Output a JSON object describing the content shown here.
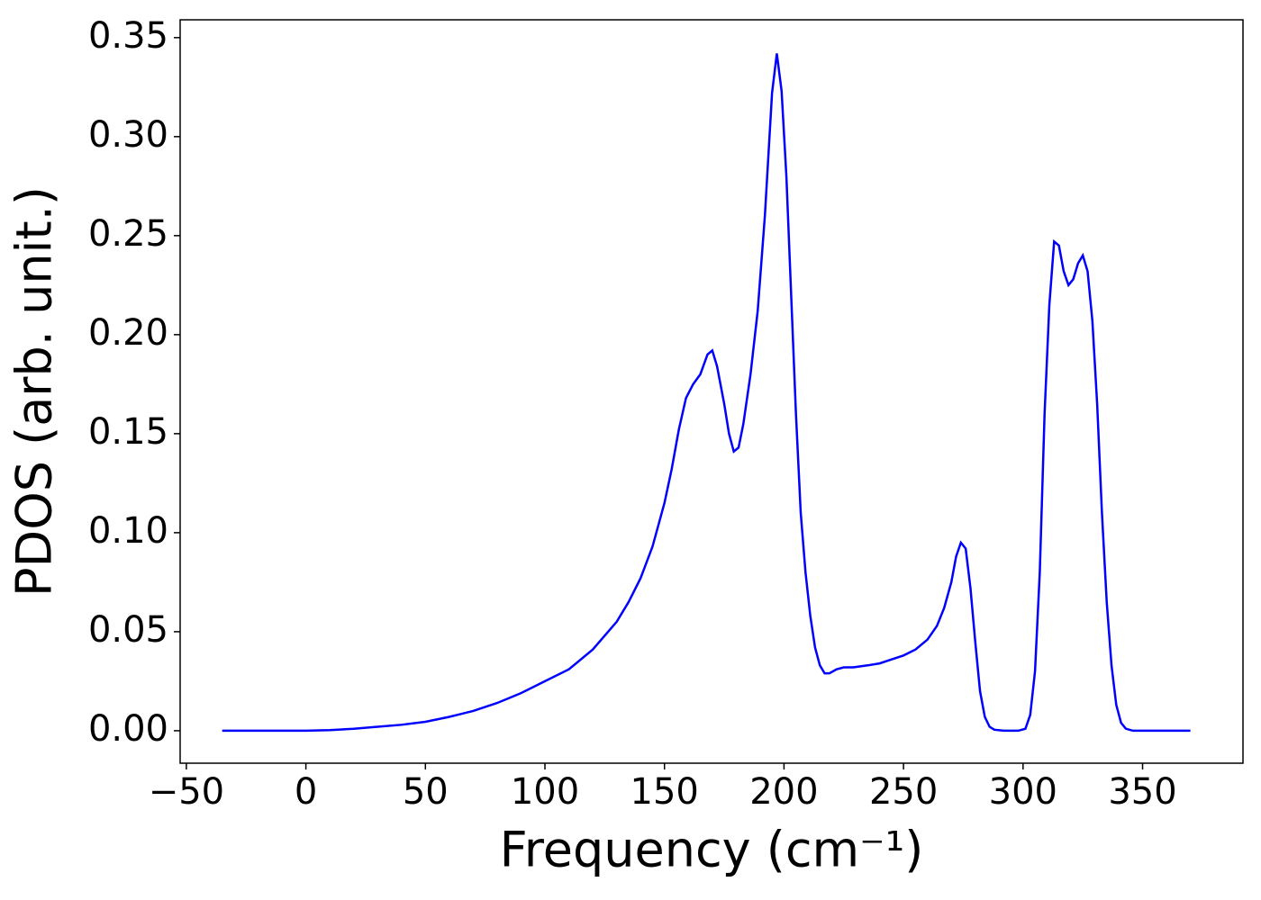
{
  "chart_data": {
    "type": "line",
    "x_label": "Frequency (cm⁻¹)",
    "y_label": "PDOS (arb. unit.)",
    "xlim": [
      -52.6,
      392
    ],
    "ylim": [
      -0.0164,
      0.359
    ],
    "xticks": [
      {
        "value": -50,
        "label": "−50"
      },
      0,
      50,
      100,
      150,
      200,
      250,
      300,
      350
    ],
    "yticks": [
      {
        "value": 0,
        "label": "0.00"
      },
      0.05,
      {
        "value": 0.1,
        "label": "0.10"
      },
      0.15,
      {
        "value": 0.2,
        "label": "0.20"
      },
      0.25,
      {
        "value": 0.3,
        "label": "0.30"
      },
      0.35
    ],
    "grid": false,
    "x": [
      -35,
      0,
      10,
      20,
      30,
      40,
      50,
      60,
      70,
      80,
      90,
      100,
      110,
      120,
      130,
      135,
      140,
      145,
      150,
      153,
      156,
      159,
      162,
      165,
      168,
      170,
      172,
      175,
      177,
      179,
      181,
      183,
      186,
      189,
      192,
      195,
      197,
      199,
      201,
      203,
      205,
      207,
      209,
      211,
      213,
      215,
      217,
      219,
      222,
      225,
      229,
      235,
      240,
      245,
      250,
      255,
      260,
      264,
      267,
      270,
      272,
      274,
      276,
      278,
      280,
      282,
      284,
      286,
      288,
      292,
      298,
      301,
      303,
      305,
      307,
      309,
      311,
      313,
      315,
      317,
      319,
      321,
      323,
      325,
      327,
      329,
      331,
      333,
      335,
      337,
      339,
      341,
      343,
      346,
      370
    ],
    "series": [
      {
        "color": "#0000ff",
        "values": [
          0,
          0,
          0.0003,
          0.001,
          0.002,
          0.003,
          0.0045,
          0.007,
          0.01,
          0.014,
          0.019,
          0.025,
          0.031,
          0.041,
          0.055,
          0.065,
          0.077,
          0.093,
          0.115,
          0.132,
          0.152,
          0.168,
          0.175,
          0.18,
          0.19,
          0.192,
          0.184,
          0.165,
          0.15,
          0.141,
          0.143,
          0.155,
          0.18,
          0.212,
          0.26,
          0.322,
          0.342,
          0.323,
          0.28,
          0.22,
          0.16,
          0.11,
          0.08,
          0.058,
          0.042,
          0.033,
          0.029,
          0.029,
          0.031,
          0.032,
          0.032,
          0.033,
          0.034,
          0.036,
          0.038,
          0.041,
          0.046,
          0.053,
          0.062,
          0.075,
          0.088,
          0.095,
          0.092,
          0.072,
          0.045,
          0.02,
          0.007,
          0.002,
          0.0005,
          0,
          0,
          0.001,
          0.008,
          0.03,
          0.08,
          0.16,
          0.215,
          0.247,
          0.245,
          0.232,
          0.225,
          0.228,
          0.236,
          0.24,
          0.232,
          0.207,
          0.165,
          0.11,
          0.065,
          0.033,
          0.013,
          0.004,
          0.001,
          0,
          0
        ]
      }
    ]
  }
}
